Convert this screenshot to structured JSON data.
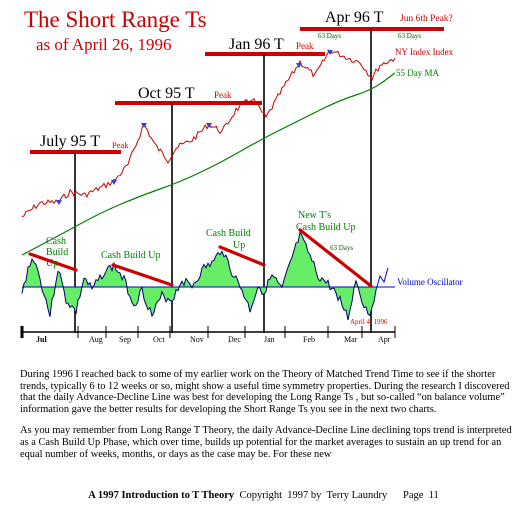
{
  "figure": {
    "title": "The Short Range Ts",
    "subtitle": "as of April 26, 1996",
    "markers": [
      {
        "label": "July 95  T",
        "peak": "Peak"
      },
      {
        "label": "Oct 95  T",
        "peak": "Peak"
      },
      {
        "label": "Jan 96  T",
        "peak": "Peak"
      },
      {
        "label": "Apr 96  T",
        "note": "Jun 6th Peak?"
      }
    ],
    "day_notes": [
      "63 Days",
      "63 Days",
      "63 Days"
    ],
    "legend": {
      "index": "NY Index Index",
      "ma": "55 Day MA",
      "oscillator": "Volume Oscillator"
    },
    "cash_labels": [
      {
        "lines": [
          "Cash",
          "Build",
          "Up"
        ]
      },
      {
        "lines": [
          "Cash Build Up"
        ]
      },
      {
        "lines": [
          "Cash Build",
          "Up"
        ]
      },
      {
        "lines": [
          "New T's",
          "Cash Build Up"
        ]
      }
    ],
    "april_note": "April 4, 1996",
    "months": [
      "Jul",
      "Aug",
      "Sep",
      "Oct",
      "Nov",
      "Dec",
      "Jan",
      "Feb",
      "Mar",
      "Apr"
    ],
    "colors": {
      "index": "#cc0000",
      "ma": "#008000",
      "oscillator_fill": "#66ee66",
      "trend": "#cc0000",
      "vline": "#000000",
      "zero": "#0000cc"
    }
  },
  "text": {
    "paragraphs": [
      "During 1996 I reached back to some of my earlier work on the Theory of Matched Trend Time to see if the shorter trends, typically  6 to 12 weeks or so, might  show a useful time symmetry properties. During the research I discovered that  the daily Advance-Decline Line was best for developing the Long Range Ts , but so-called “on balance volume” information  gave the better results for developing the Short Range Ts you see in the next two charts.",
      "As you may remember from  Long Range T Theory, the daily Advance-Decline Line declining tops trend is interpreted as a Cash Build Up Phase, which over time, builds up potential for the market averages to sustain an up trend for an equal number of weeks, months, or days as the case may be.  For these new"
    ]
  },
  "footer": {
    "book": "A 1997 Introduction to T Theory",
    "copyright": "Copyright  1997 by  Terry Laundry",
    "page": "Page  11"
  }
}
